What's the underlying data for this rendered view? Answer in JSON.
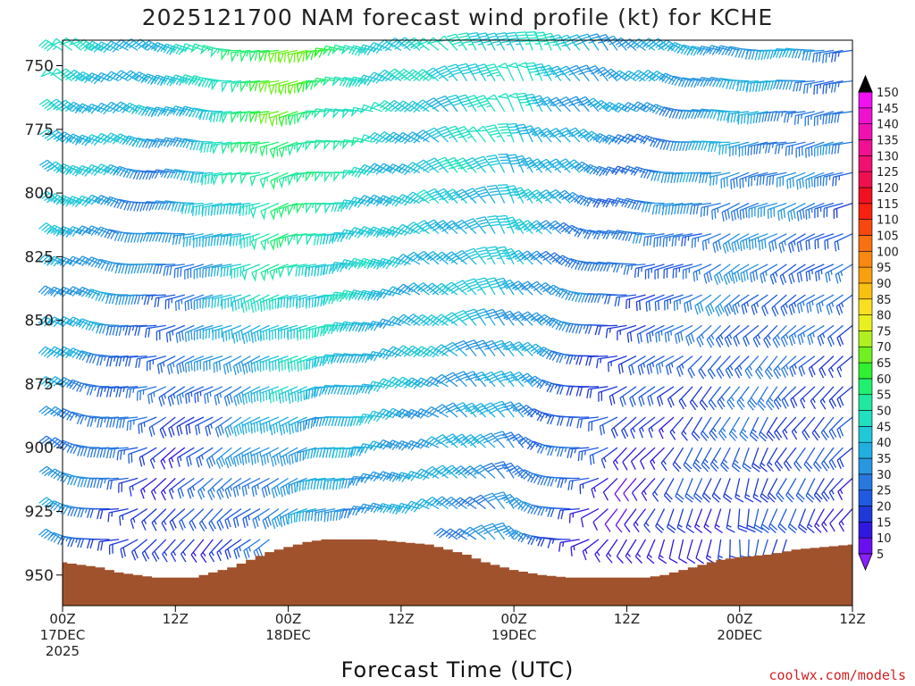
{
  "chart_data": {
    "type": "wind_barb_profile",
    "title": "2025121700 NAM forecast wind profile (kt) for KCHE",
    "xlabel": "Forecast Time (UTC)",
    "credit": "coolwx.com/models",
    "yaxis": {
      "quantity": "pressure (hPa)",
      "range": [
        740,
        962
      ],
      "inverted": true,
      "ticks": [
        750,
        775,
        800,
        825,
        850,
        875,
        900,
        925,
        950
      ]
    },
    "xaxis": {
      "range_hours": [
        0,
        84
      ],
      "ticks": [
        {
          "hour": 0,
          "lines": [
            "00Z",
            "17DEC",
            "2025"
          ]
        },
        {
          "hour": 12,
          "lines": [
            "12Z"
          ]
        },
        {
          "hour": 24,
          "lines": [
            "00Z",
            "18DEC"
          ]
        },
        {
          "hour": 36,
          "lines": [
            "12Z"
          ]
        },
        {
          "hour": 48,
          "lines": [
            "00Z",
            "19DEC"
          ]
        },
        {
          "hour": 60,
          "lines": [
            "12Z"
          ]
        },
        {
          "hour": 72,
          "lines": [
            "00Z",
            "20DEC"
          ]
        },
        {
          "hour": 84,
          "lines": [
            "12Z"
          ]
        }
      ]
    },
    "colorbar": {
      "units": "kt",
      "levels": [
        5,
        10,
        15,
        20,
        25,
        30,
        35,
        40,
        45,
        50,
        55,
        60,
        65,
        70,
        75,
        80,
        85,
        90,
        95,
        100,
        105,
        110,
        115,
        120,
        125,
        130,
        135,
        140,
        145,
        150
      ],
      "colors": [
        "#8a1fff",
        "#6a10f0",
        "#3018e0",
        "#1f38d8",
        "#1f5ae0",
        "#2878e0",
        "#2896e0",
        "#20b0e0",
        "#20c8d8",
        "#20e0c0",
        "#20e8a0",
        "#20f070",
        "#30f030",
        "#70f020",
        "#b0f020",
        "#e8f020",
        "#f8e020",
        "#f8c010",
        "#f8a010",
        "#f88810",
        "#f87010",
        "#f84810",
        "#f82010",
        "#f01020",
        "#f01050",
        "#f01070",
        "#f01090",
        "#f010b0",
        "#f010d0",
        "#f010f0"
      ]
    },
    "surface_pressure": [
      [
        0,
        945
      ],
      [
        4,
        947
      ],
      [
        6,
        949
      ],
      [
        8,
        950
      ],
      [
        10,
        951
      ],
      [
        14,
        951
      ],
      [
        16,
        949
      ],
      [
        18,
        947
      ],
      [
        20,
        944
      ],
      [
        22,
        941
      ],
      [
        24,
        939
      ],
      [
        26,
        937
      ],
      [
        28,
        936
      ],
      [
        33,
        936
      ],
      [
        36,
        937
      ],
      [
        39,
        938
      ],
      [
        41,
        940
      ],
      [
        43,
        942
      ],
      [
        45,
        945
      ],
      [
        48,
        948
      ],
      [
        51,
        950
      ],
      [
        54,
        951
      ],
      [
        62,
        951
      ],
      [
        64,
        950
      ],
      [
        66,
        948
      ],
      [
        68,
        946
      ],
      [
        70,
        944
      ],
      [
        72,
        943
      ],
      [
        75,
        942
      ],
      [
        78,
        940
      ],
      [
        81,
        939
      ],
      [
        84,
        938
      ]
    ],
    "wind_field": {
      "time_step_hours": 1,
      "pressure_step_hpa": 12,
      "direction_keyframes": [
        {
          "hour": 0,
          "upper_deg": 305,
          "lower_deg": 300
        },
        {
          "hour": 12,
          "upper_deg": 300,
          "lower_deg": 210
        },
        {
          "hour": 24,
          "upper_deg": 255,
          "lower_deg": 240
        },
        {
          "hour": 36,
          "upper_deg": 300,
          "lower_deg": 285
        },
        {
          "hour": 48,
          "upper_deg": 340,
          "lower_deg": 320
        },
        {
          "hour": 60,
          "upper_deg": 320,
          "lower_deg": 200
        },
        {
          "hour": 72,
          "upper_deg": 280,
          "lower_deg": 180
        },
        {
          "hour": 84,
          "upper_deg": 265,
          "lower_deg": 215
        }
      ],
      "speed_keyframes": [
        {
          "hour": 0,
          "upper_kt": 47,
          "lower_kt": 30
        },
        {
          "hour": 12,
          "upper_kt": 38,
          "lower_kt": 10
        },
        {
          "hour": 24,
          "upper_kt": 70,
          "lower_kt": 28
        },
        {
          "hour": 36,
          "upper_kt": 43,
          "lower_kt": 35
        },
        {
          "hour": 48,
          "upper_kt": 48,
          "lower_kt": 30
        },
        {
          "hour": 60,
          "upper_kt": 35,
          "lower_kt": 7
        },
        {
          "hour": 72,
          "upper_kt": 38,
          "lower_kt": 18
        },
        {
          "hour": 84,
          "upper_kt": 28,
          "lower_kt": 15
        }
      ]
    }
  }
}
